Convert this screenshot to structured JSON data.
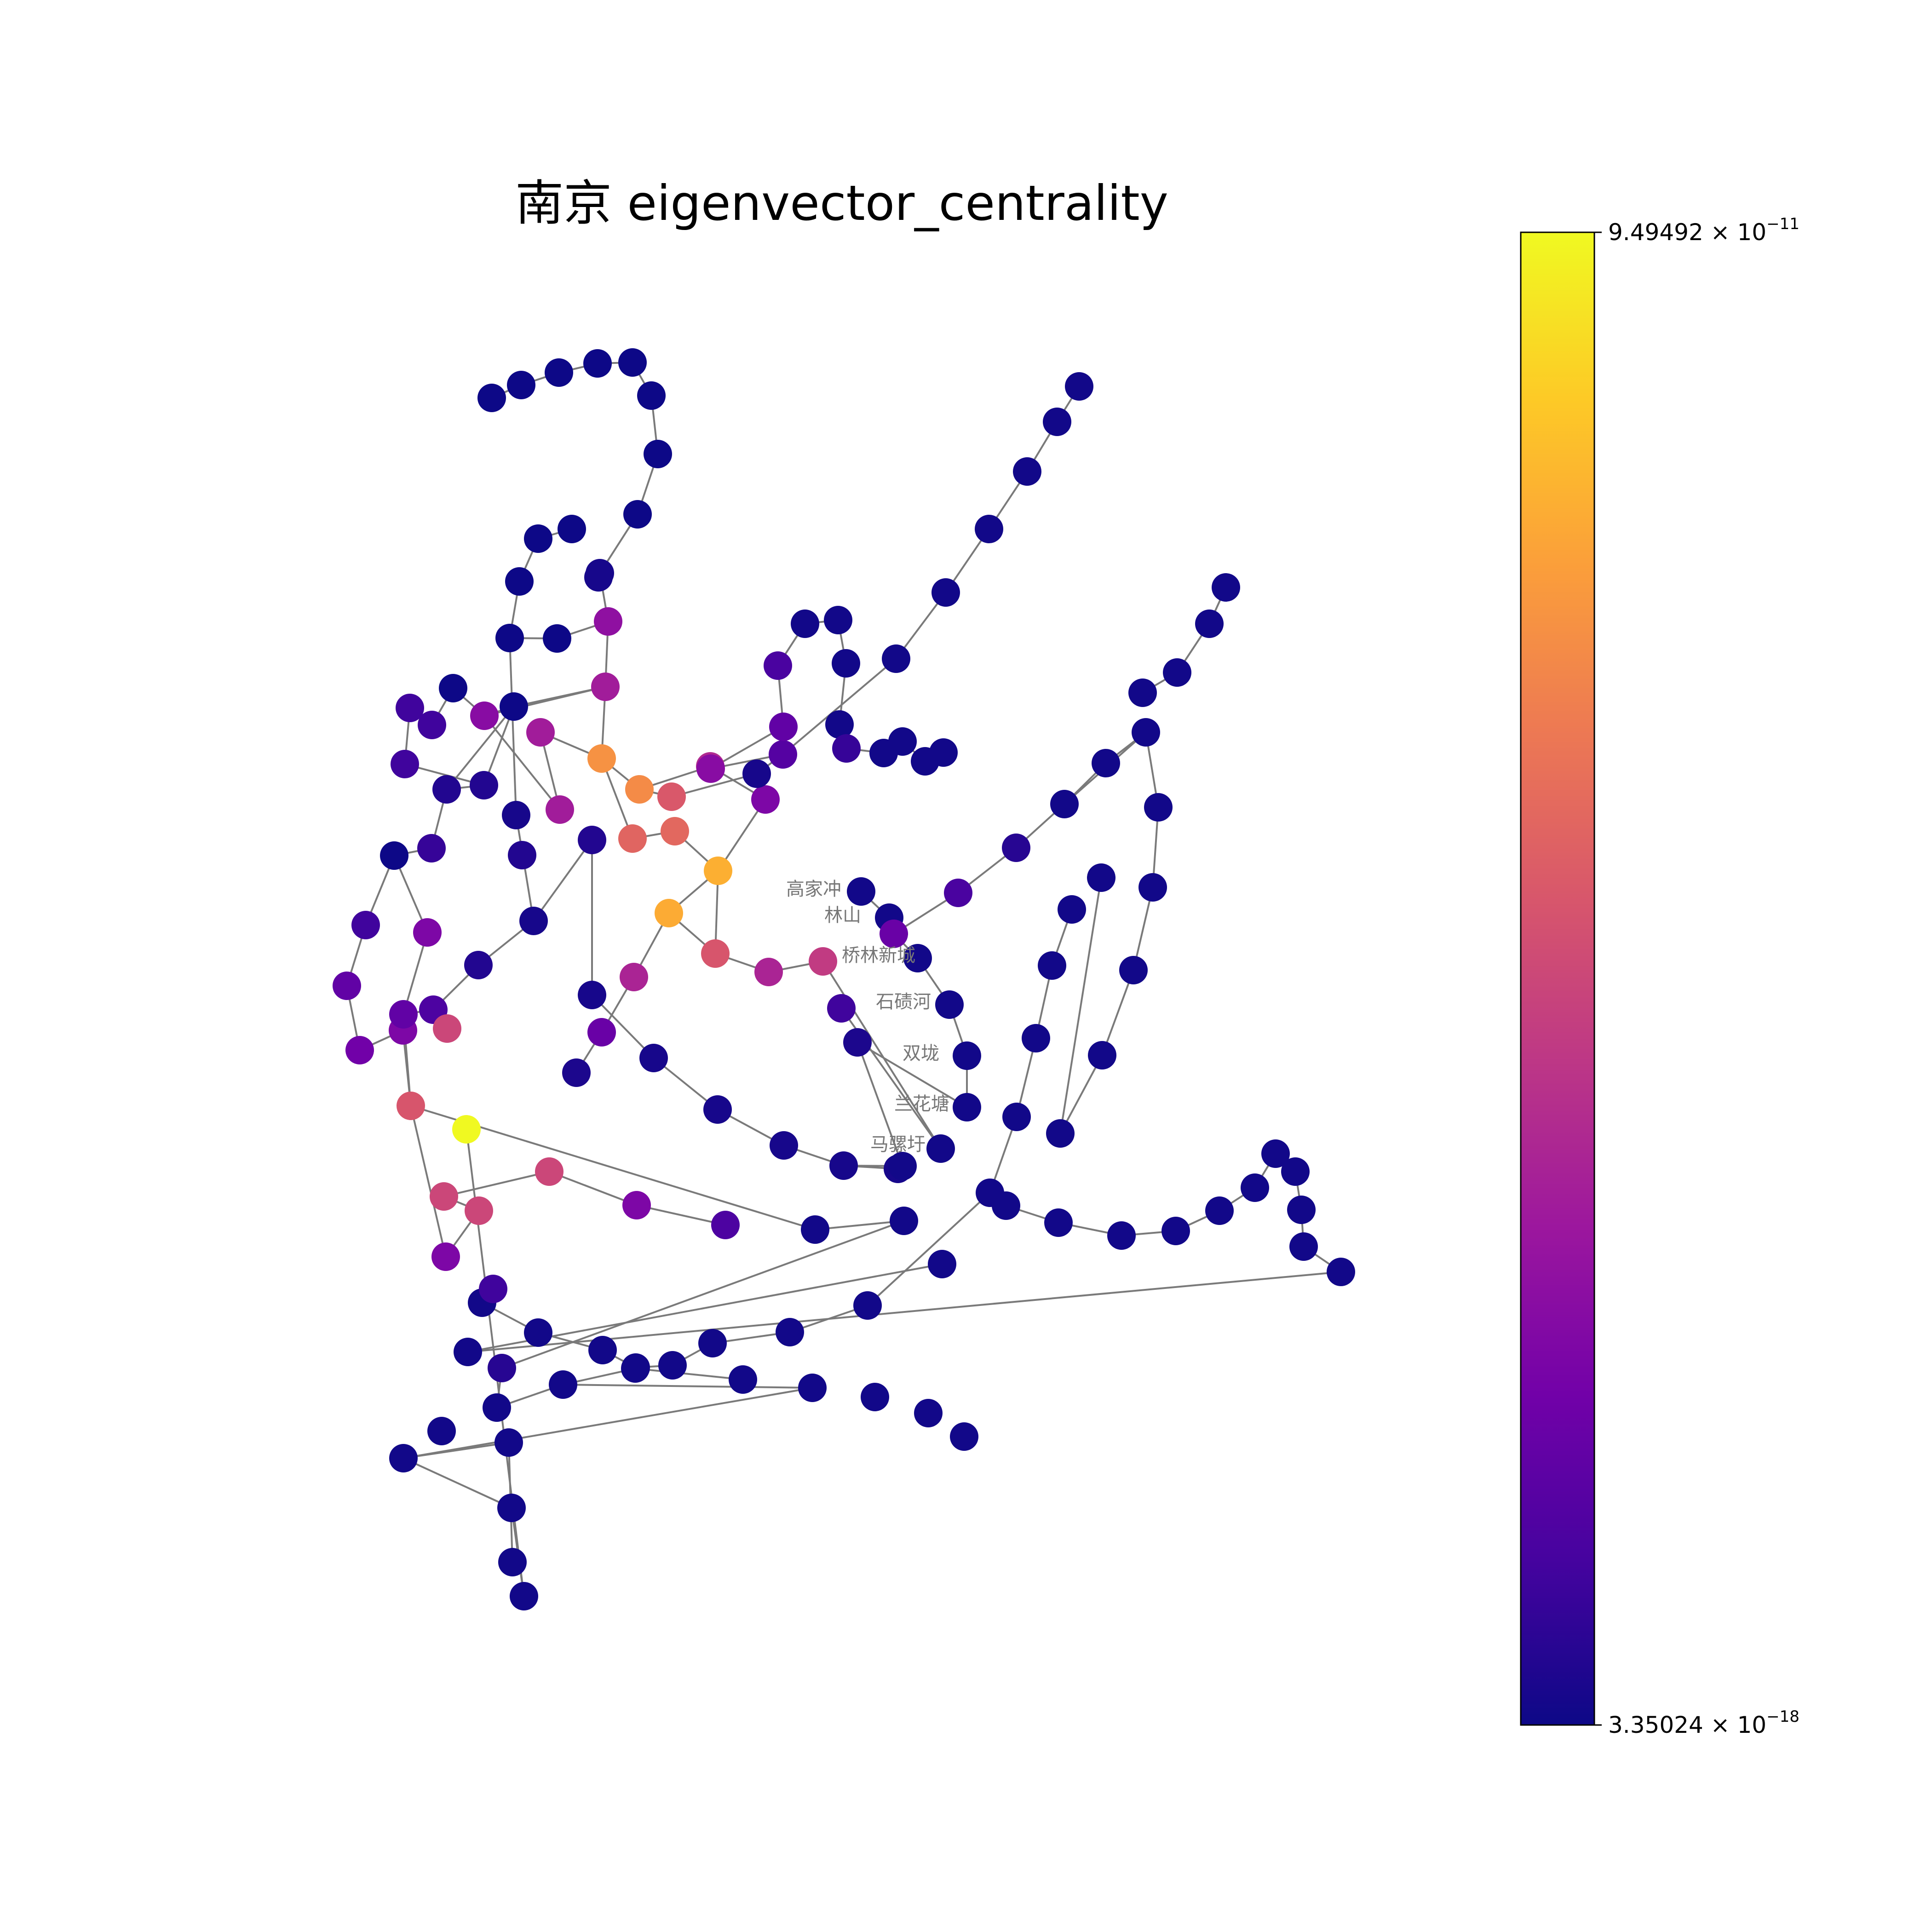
{
  "title": "南京  eigenvector_centrality",
  "labels": [
    {
      "name": "高家冲"
    },
    {
      "name": "林山"
    },
    {
      "name": "桥林新城"
    },
    {
      "name": "石碛河"
    },
    {
      "name": "双垅"
    },
    {
      "name": "兰花塘"
    },
    {
      "name": "马骡圩"
    }
  ],
  "colorbar": {
    "colormap": "plasma",
    "max": {
      "mantissa": "9.49492 × 10",
      "exponent": "−11"
    },
    "min": {
      "mantissa": "3.35024 × 10",
      "exponent": "−18"
    },
    "stops": [
      "#0d0887",
      "#46039f",
      "#7201a8",
      "#9c179e",
      "#bd3786",
      "#d8576b",
      "#ed7953",
      "#fb9f3a",
      "#fdca26",
      "#f0f921"
    ]
  }
}
